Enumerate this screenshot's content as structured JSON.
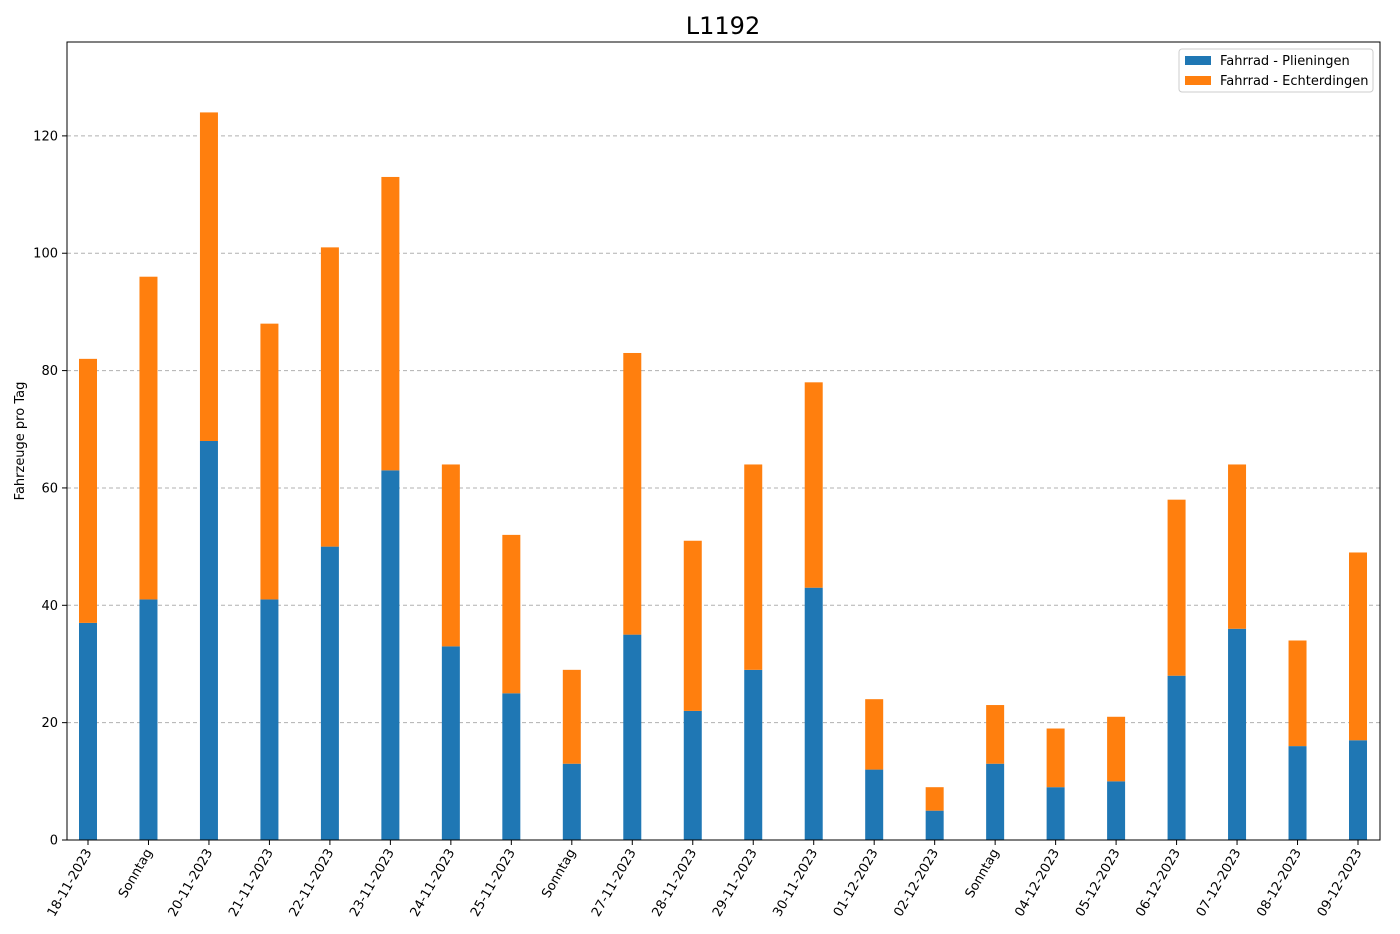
{
  "chart_data": {
    "type": "bar",
    "stacked": true,
    "title": "L1192",
    "xlabel": "",
    "ylabel": "Fahrzeuge pro Tag",
    "ylim": [
      0,
      136
    ],
    "yticks": [
      0,
      20,
      40,
      60,
      80,
      100,
      120
    ],
    "grid": "y-dashed",
    "legend_position": "top-right",
    "categories": [
      "18-11-2023",
      "Sonntag",
      "20-11-2023",
      "21-11-2023",
      "22-11-2023",
      "23-11-2023",
      "24-11-2023",
      "25-11-2023",
      "Sonntag",
      "27-11-2023",
      "28-11-2023",
      "29-11-2023",
      "30-11-2023",
      "01-12-2023",
      "02-12-2023",
      "Sonntag",
      "04-12-2023",
      "05-12-2023",
      "06-12-2023",
      "07-12-2023",
      "08-12-2023",
      "09-12-2023"
    ],
    "series": [
      {
        "name": "Fahrrad - Plieningen",
        "color": "#1f77b4",
        "values": [
          37,
          41,
          68,
          41,
          50,
          63,
          33,
          25,
          13,
          35,
          22,
          29,
          43,
          12,
          5,
          13,
          9,
          10,
          28,
          36,
          16,
          17
        ]
      },
      {
        "name": "Fahrrad - Echterdingen",
        "color": "#ff7f0e",
        "values": [
          45,
          55,
          56,
          47,
          51,
          50,
          31,
          27,
          16,
          48,
          29,
          35,
          35,
          12,
          4,
          10,
          10,
          11,
          30,
          28,
          18,
          32
        ]
      }
    ]
  }
}
